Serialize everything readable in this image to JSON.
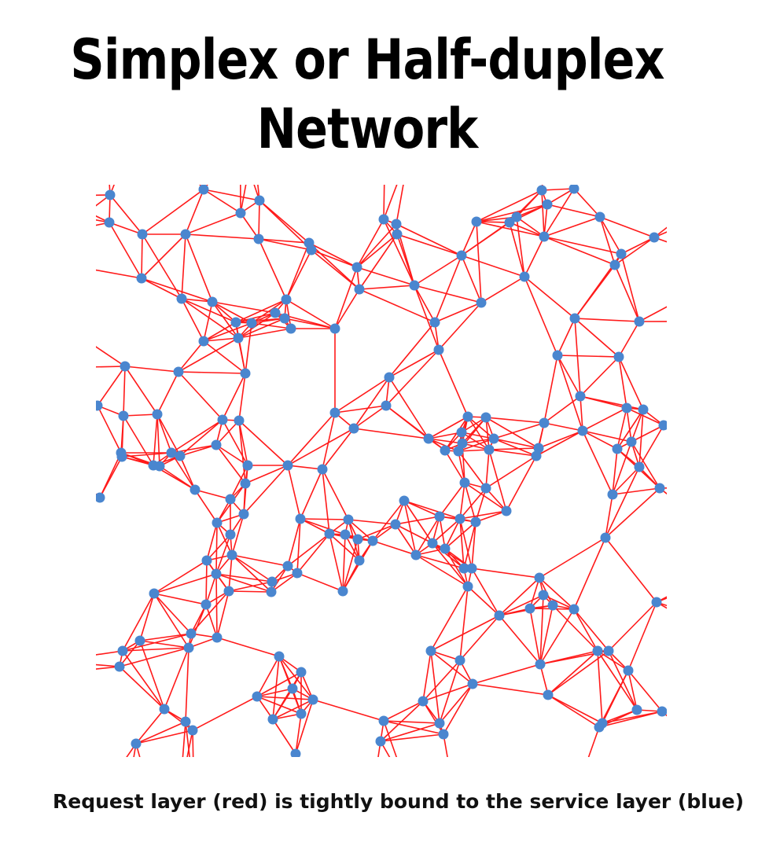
{
  "title": "Simplex or Half-duplex Network",
  "caption": "Request layer (red) is tightly bound to the service layer (blue)",
  "colors": {
    "request_layer": "#ff1a1a",
    "service_layer": "#4a86cf",
    "background": "#ffffff"
  }
}
